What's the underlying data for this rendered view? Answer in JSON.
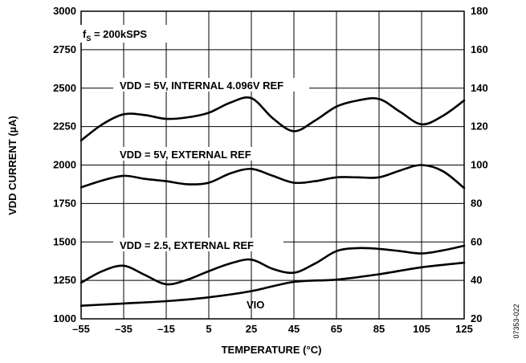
{
  "chart_data": {
    "type": "line",
    "annotation_main": "f",
    "annotation_sub": "S",
    "annotation_rest": " = 200kSPS",
    "xlabel": "TEMPERATURE (°C)",
    "ylabel": "VDD CURRENT (µA)",
    "figure_id": "07353-022",
    "xlim": [
      -55,
      125
    ],
    "ylim_left": [
      1000,
      3000
    ],
    "ylim_right": [
      20,
      180
    ],
    "x_ticks": [
      "–55",
      "–35",
      "–15",
      "5",
      "25",
      "45",
      "65",
      "85",
      "105",
      "125"
    ],
    "y_ticks_left": [
      "1000",
      "1250",
      "1500",
      "1750",
      "2000",
      "2250",
      "2500",
      "2750",
      "3000"
    ],
    "y_ticks_right": [
      "20",
      "40",
      "60",
      "80",
      "100",
      "120",
      "140",
      "160",
      "180"
    ],
    "grid": true,
    "line_color": "#000000",
    "series": [
      {
        "name": "VDD = 5V, INTERNAL 4.096V REF",
        "axis": "left",
        "x": [
          -55,
          -45,
          -35,
          -25,
          -15,
          -5,
          5,
          15,
          25,
          35,
          45,
          55,
          65,
          75,
          85,
          95,
          105,
          115,
          125
        ],
        "y": [
          2160,
          2265,
          2330,
          2325,
          2300,
          2310,
          2340,
          2405,
          2435,
          2305,
          2220,
          2290,
          2380,
          2420,
          2430,
          2345,
          2265,
          2320,
          2420
        ]
      },
      {
        "name": "VDD = 5V, EXTERNAL REF",
        "axis": "left",
        "x": [
          -55,
          -45,
          -35,
          -25,
          -15,
          -5,
          5,
          15,
          25,
          35,
          45,
          55,
          65,
          75,
          85,
          95,
          105,
          115,
          125
        ],
        "y": [
          1855,
          1900,
          1930,
          1910,
          1895,
          1875,
          1885,
          1945,
          1975,
          1930,
          1885,
          1895,
          1920,
          1920,
          1920,
          1965,
          2000,
          1960,
          1850
        ]
      },
      {
        "name": "VDD = 2.5, EXTERNAL REF",
        "axis": "left",
        "x": [
          -55,
          -45,
          -35,
          -25,
          -15,
          -5,
          5,
          15,
          25,
          35,
          45,
          55,
          65,
          75,
          85,
          95,
          105,
          115,
          125
        ],
        "y": [
          1235,
          1310,
          1345,
          1285,
          1225,
          1255,
          1310,
          1360,
          1385,
          1325,
          1300,
          1360,
          1440,
          1460,
          1455,
          1440,
          1425,
          1445,
          1475
        ]
      },
      {
        "name": "VIO",
        "axis": "left",
        "x": [
          -55,
          -35,
          -15,
          5,
          25,
          45,
          65,
          85,
          105,
          125
        ],
        "y": [
          1085,
          1100,
          1115,
          1140,
          1180,
          1240,
          1255,
          1290,
          1335,
          1365
        ]
      }
    ]
  }
}
